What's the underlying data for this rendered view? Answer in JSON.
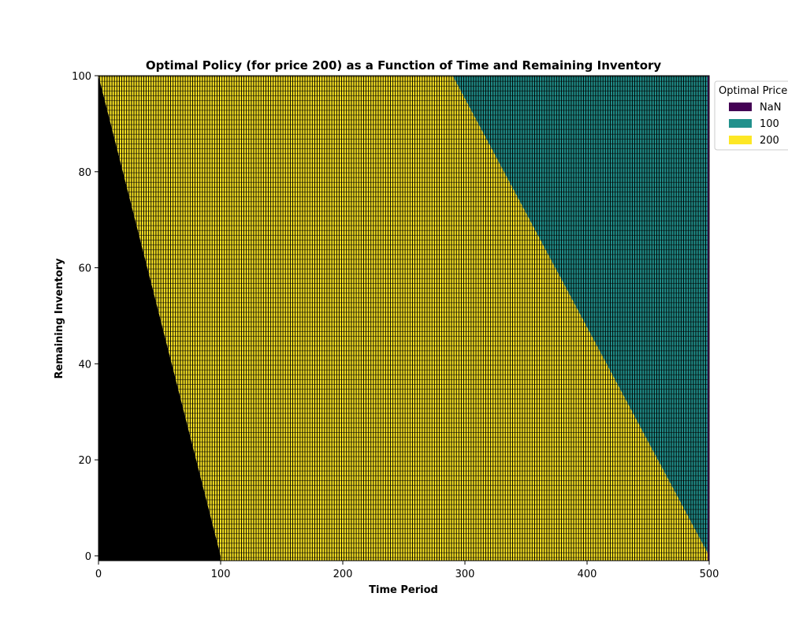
{
  "chart_data": {
    "type": "heatmap",
    "title": "Optimal Policy (for price 200) as a Function of Time and Remaining Inventory",
    "xlabel": "Time Period",
    "ylabel": "Remaining Inventory",
    "xlim": [
      0,
      500
    ],
    "ylim": [
      -1,
      100
    ],
    "x_ticks": [
      0,
      100,
      200,
      300,
      400,
      500
    ],
    "y_ticks": [
      0,
      20,
      40,
      60,
      80,
      100
    ],
    "grid": false,
    "legend": {
      "title": "Optimal Price",
      "placement": "outside-top-right",
      "entries": [
        {
          "label": "NaN",
          "color": "#440154"
        },
        {
          "label": "100",
          "color": "#21918c"
        },
        {
          "label": "200",
          "color": "#fde725"
        }
      ]
    },
    "regions": [
      {
        "value": "NaN",
        "description_boundary": "inventory > 100 - t",
        "boundary_points": [
          [
            0,
            100
          ],
          [
            100,
            0
          ]
        ],
        "rendered_color": "#000000"
      },
      {
        "value": "200",
        "boundary_points": [
          [
            100,
            0
          ],
          [
            500,
            0
          ],
          [
            290,
            100
          ]
        ],
        "rendered_color": "#fde725"
      },
      {
        "value": "100",
        "boundary_points": [
          [
            290,
            100
          ],
          [
            500,
            100
          ],
          [
            500,
            0
          ]
        ],
        "rendered_color": "#21918c"
      }
    ],
    "colors": {
      "nan_region": "#000000",
      "price_100": "#21918c",
      "price_200": "#fde725",
      "cell_edge": "#000000"
    }
  }
}
